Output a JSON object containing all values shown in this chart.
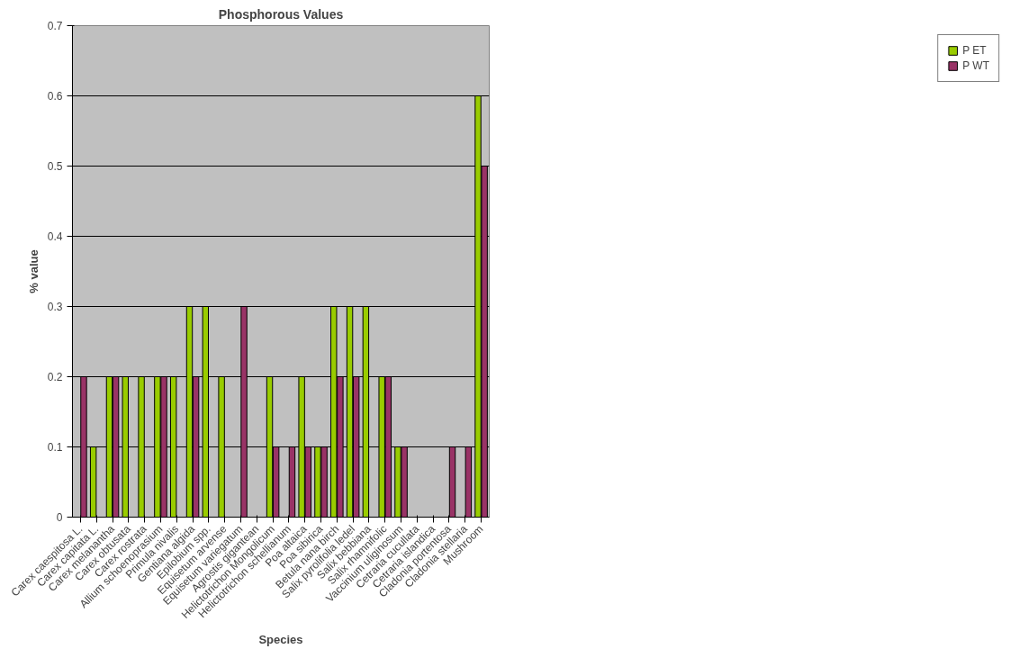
{
  "chart_data": {
    "type": "bar",
    "title": "Phosphorous Values",
    "xlabel": "Species",
    "ylabel": "% value",
    "categories": [
      "Carex caespitosa L.",
      "Carex capitata L.",
      "Carex melanantha",
      "Carex obtusata",
      "Carex rostrata",
      "Allium schoenoprasium",
      "Primula nivalis",
      "Gentiana algida",
      "Epilobium spp.",
      "Equisetum arvense",
      "Equisetum variegatum",
      "Agrostis gigantean",
      "Helictotrichon Mongolicum",
      "Helictotrichon schellianum",
      "Poa altaica",
      "Poa sibirica",
      "Betula nana birch",
      "Salix pyrolifolia ledel",
      "Salix bebbiana",
      "Salix rhamnifolic",
      "Vaccinium uliginosum",
      "Cetraria cucullata",
      "Cetraria islandica",
      "Cladonia portentosa",
      "Cladonia stellaria",
      "Mushroom"
    ],
    "series": [
      {
        "name": "P ET",
        "color": "#99cc00",
        "values": [
          null,
          0.1,
          0.2,
          0.2,
          0.2,
          0.2,
          0.2,
          0.3,
          0.3,
          0.2,
          null,
          null,
          0.2,
          null,
          0.2,
          0.1,
          0.3,
          0.3,
          0.3,
          0.2,
          0.1,
          null,
          null,
          null,
          null,
          0.6
        ]
      },
      {
        "name": "P WT",
        "color": "#993366",
        "values": [
          0.2,
          null,
          0.2,
          null,
          null,
          0.2,
          null,
          0.2,
          null,
          null,
          0.3,
          null,
          0.1,
          0.1,
          0.1,
          0.1,
          0.2,
          0.2,
          null,
          0.2,
          0.1,
          null,
          null,
          0.1,
          0.1,
          0.5
        ]
      }
    ],
    "ylim": [
      0,
      0.7
    ],
    "yticks": [
      0,
      0.1,
      0.2,
      0.3,
      0.4,
      0.5,
      0.6,
      0.7
    ],
    "grid": "y",
    "legend": "right"
  }
}
